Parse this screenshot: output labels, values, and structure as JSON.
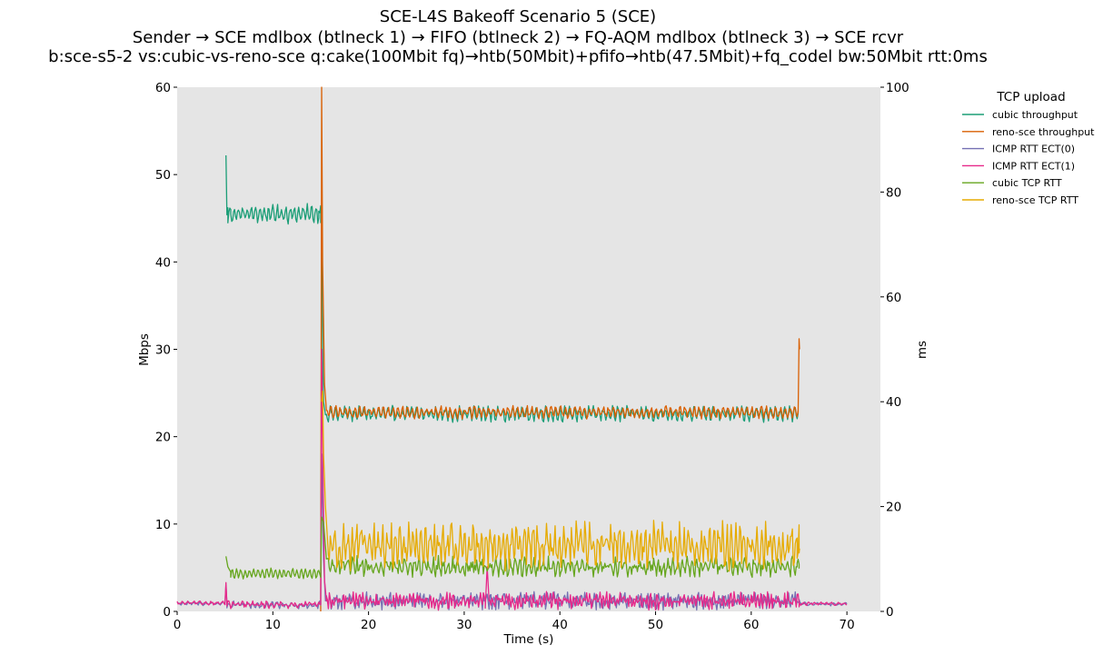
{
  "chart_data": {
    "type": "line",
    "title_lines": [
      "SCE-L4S Bakeoff Scenario 5 (SCE)",
      "Sender → SCE mdlbox (btlneck 1) → FIFO (btlneck 2) → FQ-AQM mdlbox (btlneck 3) → SCE rcvr",
      "b:sce-s5-2 vs:cubic-vs-reno-sce q:cake(100Mbit fq)→htb(50Mbit)+pfifo→htb(47.5Mbit)+fq_codel bw:50Mbit rtt:0ms"
    ],
    "xlabel": "Time (s)",
    "ylabel_left": "Mbps",
    "ylabel_right": "ms",
    "xlim": [
      0,
      73.5
    ],
    "ylim_left": [
      0,
      60
    ],
    "ylim_right": [
      0,
      100
    ],
    "xticks": [
      0,
      10,
      20,
      30,
      40,
      50,
      60,
      70
    ],
    "yticks_left": [
      0,
      10,
      20,
      30,
      40,
      50,
      60
    ],
    "yticks_right": [
      0,
      20,
      40,
      60,
      80,
      100
    ],
    "grid": false,
    "background": "#e5e5e5",
    "legend": {
      "title": "TCP upload",
      "placement": "outside-right"
    },
    "series": [
      {
        "name": "cubic throughput",
        "axis": "left",
        "color": "#1b9e77",
        "segments": [
          {
            "x0": 5.2,
            "x1": 15.0,
            "base": 45.5,
            "amp": 0.8,
            "period": 0.45,
            "noise": 0.4
          },
          {
            "x0": 15.6,
            "x1": 64.9,
            "base": 22.6,
            "amp": 0.6,
            "period": 0.5,
            "noise": 0.4
          }
        ],
        "points": [
          [
            5.1,
            52.2
          ],
          [
            5.3,
            46.2
          ],
          [
            5.6,
            45.5
          ],
          [
            14.8,
            45.8
          ],
          [
            15.0,
            44.5
          ],
          [
            15.1,
            46.0
          ],
          [
            15.2,
            30.0
          ],
          [
            15.3,
            24.0
          ],
          [
            15.5,
            22.5
          ]
        ]
      },
      {
        "name": "reno-sce throughput",
        "axis": "left",
        "color": "#d95f02",
        "segments": [
          {
            "x0": 15.6,
            "x1": 64.9,
            "base": 22.8,
            "amp": 0.5,
            "period": 0.5,
            "noise": 0.3
          }
        ],
        "points": [
          [
            15.0,
            0.0
          ],
          [
            15.1,
            60.0
          ],
          [
            15.2,
            40.0
          ],
          [
            15.4,
            26.0
          ],
          [
            15.6,
            23.0
          ],
          [
            64.9,
            23.0
          ],
          [
            65.0,
            31.2
          ],
          [
            65.05,
            30.0
          ]
        ]
      },
      {
        "name": "ICMP RTT ECT(0)",
        "axis": "right",
        "color": "#7570b3",
        "segments": [
          {
            "x0": 0.0,
            "x1": 5.0,
            "base": 1.5,
            "amp": 0.2,
            "period": 0.6,
            "noise": 0.2
          },
          {
            "x0": 5.2,
            "x1": 15.0,
            "base": 1.2,
            "amp": 0.4,
            "period": 0.5,
            "noise": 0.4
          },
          {
            "x0": 15.6,
            "x1": 65.0,
            "base": 2.0,
            "amp": 0.8,
            "period": 0.35,
            "noise": 1.0
          },
          {
            "x0": 65.0,
            "x1": 70.0,
            "base": 1.4,
            "amp": 0.2,
            "period": 0.6,
            "noise": 0.2
          }
        ],
        "points": [
          [
            5.0,
            1.5
          ],
          [
            5.1,
            5.0
          ],
          [
            5.2,
            1.5
          ],
          [
            15.0,
            1.2
          ],
          [
            15.1,
            30.0
          ],
          [
            15.3,
            10.0
          ],
          [
            15.5,
            2.0
          ]
        ]
      },
      {
        "name": "ICMP RTT ECT(1)",
        "axis": "right",
        "color": "#e7298a",
        "segments": [
          {
            "x0": 0.0,
            "x1": 5.0,
            "base": 1.6,
            "amp": 0.2,
            "period": 0.6,
            "noise": 0.2
          },
          {
            "x0": 5.2,
            "x1": 15.0,
            "base": 1.3,
            "amp": 0.4,
            "period": 0.5,
            "noise": 0.4
          },
          {
            "x0": 15.6,
            "x1": 32.2,
            "base": 2.0,
            "amp": 0.8,
            "period": 0.35,
            "noise": 1.0
          },
          {
            "x0": 32.6,
            "x1": 65.0,
            "base": 2.0,
            "amp": 0.8,
            "period": 0.35,
            "noise": 1.0
          },
          {
            "x0": 65.0,
            "x1": 70.0,
            "base": 1.5,
            "amp": 0.2,
            "period": 0.6,
            "noise": 0.2
          }
        ],
        "points": [
          [
            5.0,
            1.6
          ],
          [
            5.1,
            5.5
          ],
          [
            5.2,
            1.5
          ],
          [
            15.0,
            1.3
          ],
          [
            15.1,
            50.0
          ],
          [
            15.25,
            25.0
          ],
          [
            15.4,
            6.0
          ],
          [
            15.6,
            2.0
          ],
          [
            32.2,
            2.0
          ],
          [
            32.4,
            8.5
          ],
          [
            32.6,
            2.0
          ]
        ]
      },
      {
        "name": "cubic TCP RTT",
        "axis": "right",
        "color": "#66a61e",
        "segments": [
          {
            "x0": 5.6,
            "x1": 15.0,
            "base": 7.2,
            "amp": 0.8,
            "period": 0.45,
            "noise": 0.3
          },
          {
            "x0": 15.8,
            "x1": 65.0,
            "base": 8.5,
            "amp": 1.0,
            "period": 0.5,
            "noise": 1.2
          }
        ],
        "points": [
          [
            5.1,
            10.5
          ],
          [
            5.3,
            8.5
          ],
          [
            5.6,
            7.5
          ],
          [
            15.0,
            6.5
          ],
          [
            15.1,
            18.0
          ],
          [
            15.3,
            17.0
          ],
          [
            15.6,
            10.0
          ],
          [
            64.8,
            8.5
          ],
          [
            65.0,
            9.0
          ]
        ]
      },
      {
        "name": "reno-sce TCP RTT",
        "axis": "right",
        "color": "#e6ab02",
        "segments": [
          {
            "x0": 15.8,
            "x1": 65.0,
            "base": 12.5,
            "amp": 2.5,
            "period": 0.45,
            "noise": 2.5
          }
        ],
        "points": [
          [
            15.1,
            40.0
          ],
          [
            15.2,
            42.0
          ],
          [
            15.3,
            30.0
          ],
          [
            15.5,
            20.0
          ],
          [
            15.7,
            14.0
          ],
          [
            64.8,
            14.0
          ],
          [
            65.0,
            16.5
          ],
          [
            65.05,
            12.0
          ]
        ]
      }
    ]
  }
}
